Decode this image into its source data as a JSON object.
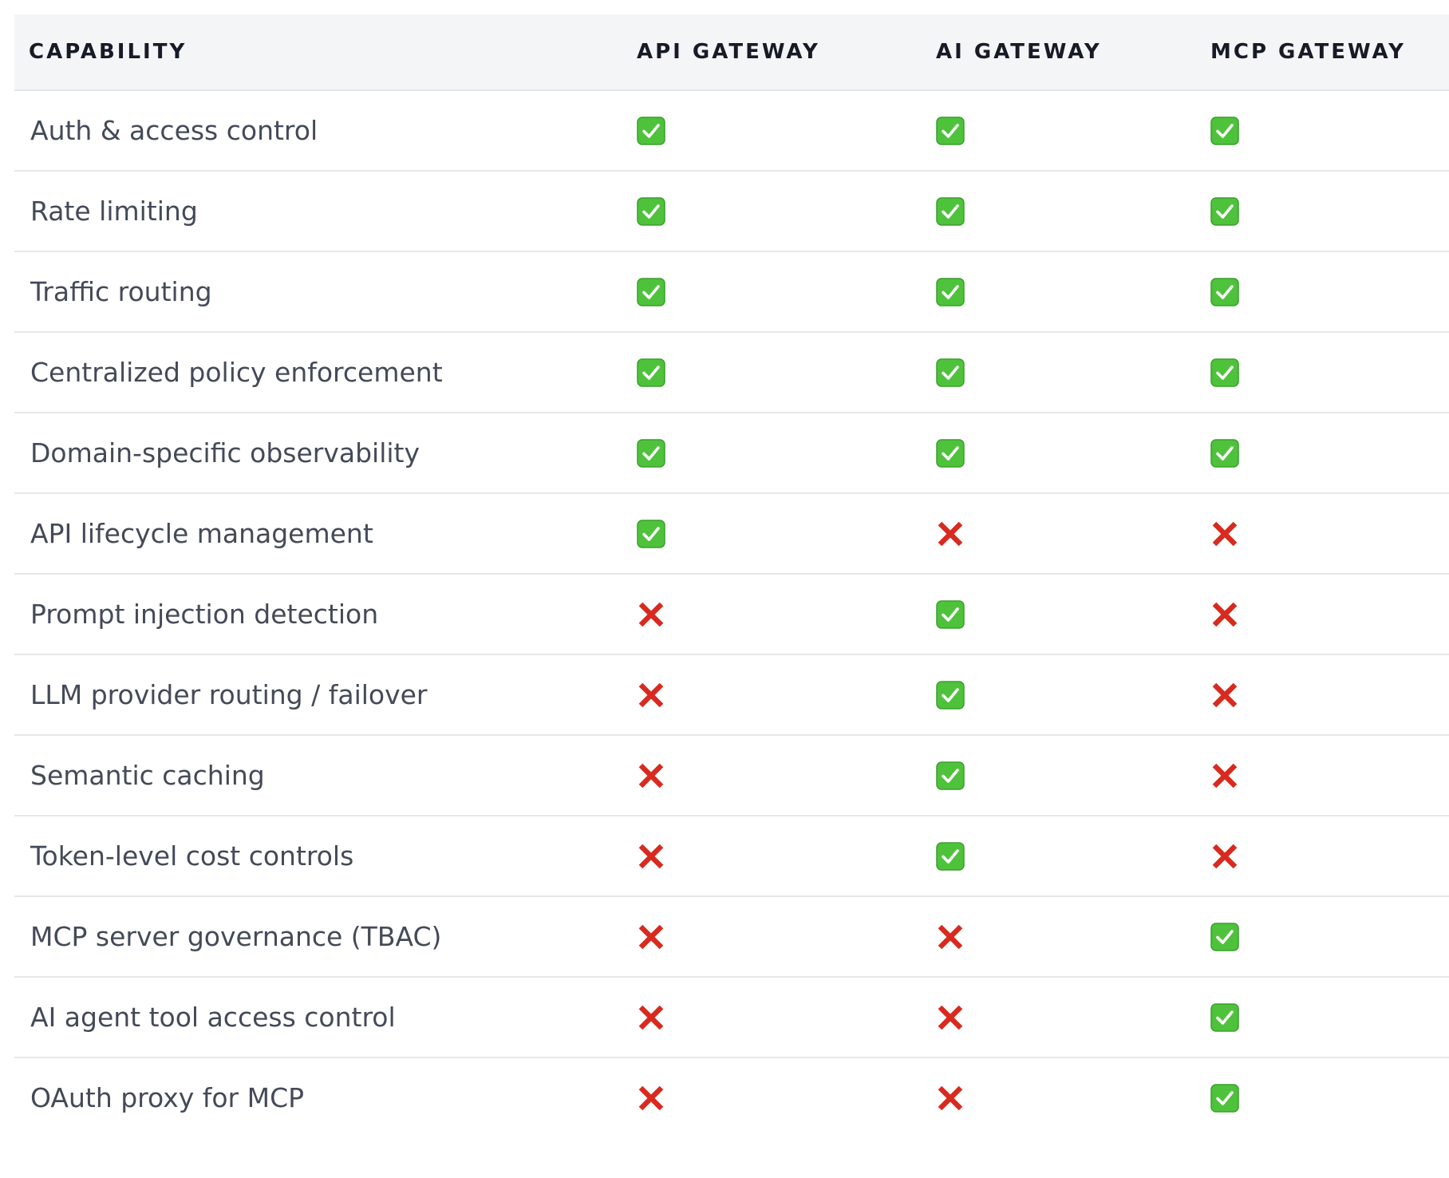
{
  "colors": {
    "check_bg": "#4fc23c",
    "check_border": "#3aa02c",
    "cross": "#d92a1f",
    "header_bg": "#f4f5f7",
    "divider": "#e6e7ea"
  },
  "table": {
    "headers": [
      "CAPABILITY",
      "API GATEWAY",
      "AI GATEWAY",
      "MCP GATEWAY"
    ],
    "rows": [
      {
        "capability": "Auth & access control",
        "api": "check",
        "ai": "check",
        "mcp": "check"
      },
      {
        "capability": "Rate limiting",
        "api": "check",
        "ai": "check",
        "mcp": "check"
      },
      {
        "capability": "Traffic routing",
        "api": "check",
        "ai": "check",
        "mcp": "check"
      },
      {
        "capability": "Centralized policy enforcement",
        "api": "check",
        "ai": "check",
        "mcp": "check"
      },
      {
        "capability": "Domain-specific observability",
        "api": "check",
        "ai": "check",
        "mcp": "check"
      },
      {
        "capability": "API lifecycle management",
        "api": "check",
        "ai": "cross",
        "mcp": "cross"
      },
      {
        "capability": "Prompt injection detection",
        "api": "cross",
        "ai": "check",
        "mcp": "cross"
      },
      {
        "capability": "LLM provider routing / failover",
        "api": "cross",
        "ai": "check",
        "mcp": "cross"
      },
      {
        "capability": "Semantic caching",
        "api": "cross",
        "ai": "check",
        "mcp": "cross"
      },
      {
        "capability": "Token-level cost controls",
        "api": "cross",
        "ai": "check",
        "mcp": "cross"
      },
      {
        "capability": "MCP server governance (TBAC)",
        "api": "cross",
        "ai": "cross",
        "mcp": "check"
      },
      {
        "capability": "AI agent tool access control",
        "api": "cross",
        "ai": "cross",
        "mcp": "check"
      },
      {
        "capability": "OAuth proxy for MCP",
        "api": "cross",
        "ai": "cross",
        "mcp": "check"
      }
    ]
  }
}
